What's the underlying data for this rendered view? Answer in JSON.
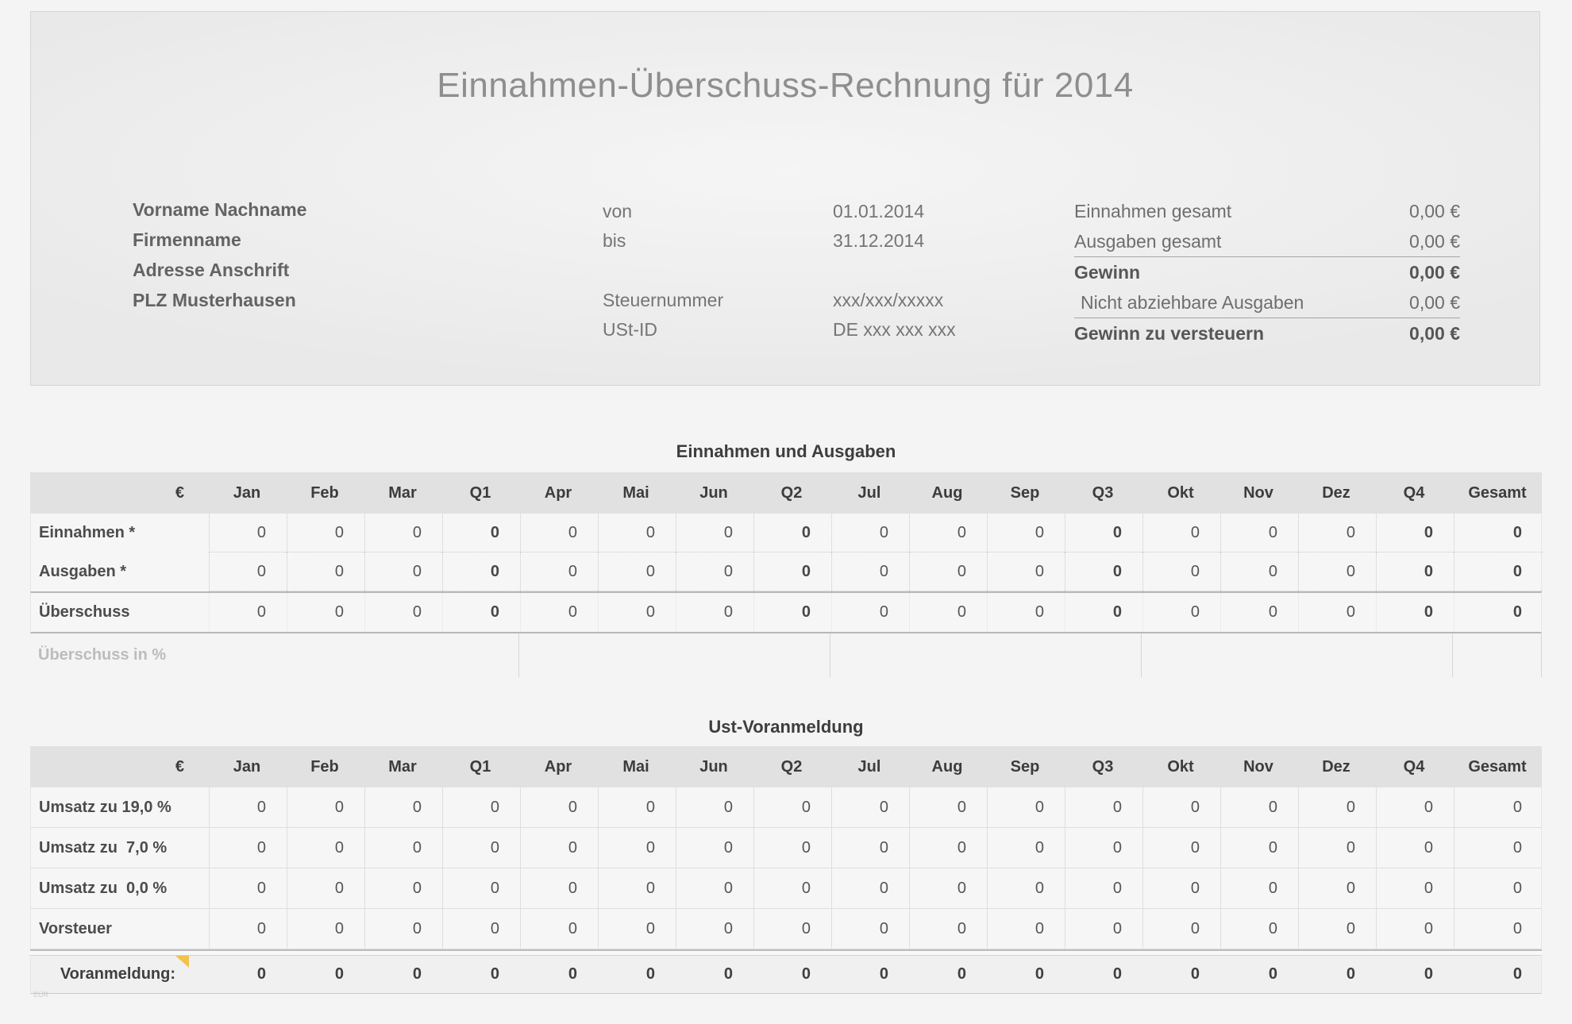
{
  "window": {
    "title": "Einnahmen-Überschuss-Rechnung für 2014"
  },
  "header": {
    "identity": [
      "Vorname Nachname",
      "Firmenname",
      "Adresse Anschrift",
      "PLZ Musterhausen"
    ],
    "period": [
      {
        "label": "von",
        "value": "01.01.2014"
      },
      {
        "label": "bis",
        "value": "31.12.2014"
      }
    ],
    "tax": [
      {
        "label": "Steuernummer",
        "value": "xxx/xxx/xxxxx"
      },
      {
        "label": "USt-ID",
        "value": "DE xxx xxx xxx"
      }
    ],
    "summary": [
      {
        "label": "Einnahmen gesamt",
        "value": "0,00 €"
      },
      {
        "label": "Ausgaben gesamt",
        "value": "0,00 €"
      },
      {
        "label": "Gewinn",
        "value": "0,00 €"
      },
      {
        "label": "Nicht abziehbare Ausgaben",
        "value": "0,00 €"
      },
      {
        "label": "Gewinn zu versteuern",
        "value": "0,00 €"
      }
    ]
  },
  "columns": [
    "€",
    "Jan",
    "Feb",
    "Mar",
    "Q1",
    "Apr",
    "Mai",
    "Jun",
    "Q2",
    "Jul",
    "Aug",
    "Sep",
    "Q3",
    "Okt",
    "Nov",
    "Dez",
    "Q4",
    "Gesamt"
  ],
  "income_expense_table": {
    "title": "Einnahmen und Ausgaben",
    "rows": [
      {
        "label": "Einnahmen *",
        "values": [
          "0",
          "0",
          "0",
          "0",
          "0",
          "0",
          "0",
          "0",
          "0",
          "0",
          "0",
          "0",
          "0",
          "0",
          "0",
          "0",
          "0"
        ]
      },
      {
        "label": "Ausgaben *",
        "values": [
          "0",
          "0",
          "0",
          "0",
          "0",
          "0",
          "0",
          "0",
          "0",
          "0",
          "0",
          "0",
          "0",
          "0",
          "0",
          "0",
          "0"
        ]
      },
      {
        "label": "Überschuss",
        "values": [
          "0",
          "0",
          "0",
          "0",
          "0",
          "0",
          "0",
          "0",
          "0",
          "0",
          "0",
          "0",
          "0",
          "0",
          "0",
          "0",
          "0"
        ]
      },
      {
        "label": "Überschuss in %",
        "values": [
          "",
          "",
          "",
          "",
          "",
          "",
          "",
          "",
          "",
          "",
          "",
          "",
          "",
          "",
          "",
          "",
          ""
        ]
      }
    ]
  },
  "vat_table": {
    "title": "Ust-Voranmeldung",
    "rows": [
      {
        "label": "Umsatz zu 19,0 %",
        "values": [
          "0",
          "0",
          "0",
          "0",
          "0",
          "0",
          "0",
          "0",
          "0",
          "0",
          "0",
          "0",
          "0",
          "0",
          "0",
          "0",
          "0"
        ]
      },
      {
        "label": "Umsatz zu  7,0 %",
        "values": [
          "0",
          "0",
          "0",
          "0",
          "0",
          "0",
          "0",
          "0",
          "0",
          "0",
          "0",
          "0",
          "0",
          "0",
          "0",
          "0",
          "0"
        ]
      },
      {
        "label": "Umsatz zu  0,0 %",
        "values": [
          "0",
          "0",
          "0",
          "0",
          "0",
          "0",
          "0",
          "0",
          "0",
          "0",
          "0",
          "0",
          "0",
          "0",
          "0",
          "0",
          "0"
        ]
      },
      {
        "label": "Vorsteuer",
        "values": [
          "0",
          "0",
          "0",
          "0",
          "0",
          "0",
          "0",
          "0",
          "0",
          "0",
          "0",
          "0",
          "0",
          "0",
          "0",
          "0",
          "0"
        ]
      },
      {
        "label": "Voranmeldung:",
        "values": [
          "0",
          "0",
          "0",
          "0",
          "0",
          "0",
          "0",
          "0",
          "0",
          "0",
          "0",
          "0",
          "0",
          "0",
          "0",
          "0",
          "0"
        ]
      }
    ],
    "comment_marker_color": "#F2C14E"
  },
  "footnote": "EÜR",
  "colors": {
    "page_bg": "#f4f4f4",
    "card_bg": "#ededed",
    "table_header_bg": "#e1e1e1",
    "table_row_bg": "#f6f6f6",
    "total_row_bg": "#f0f0f0",
    "title_text": "#8e8e8e",
    "comment_marker": "#F2C14E"
  }
}
